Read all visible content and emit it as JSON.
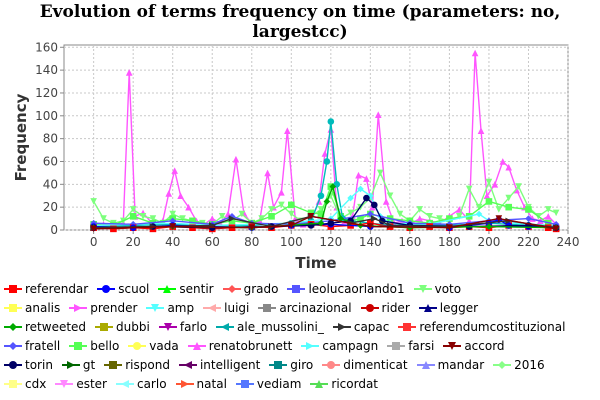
{
  "title": [
    "Evolution of terms frequency on time (parameters: no,",
    "largestcc)"
  ],
  "chart_data": {
    "type": "line",
    "title": "Evolution of terms frequency on time (parameters: no, largestcc)",
    "xlabel": "Time",
    "ylabel": "Frequency",
    "xlim": [
      -15,
      240
    ],
    "ylim": [
      0,
      162
    ],
    "xticks": [
      0,
      20,
      40,
      60,
      80,
      100,
      120,
      140,
      160,
      180,
      200,
      220,
      240
    ],
    "yticks": [
      0,
      20,
      40,
      60,
      80,
      100,
      120,
      140,
      160
    ],
    "grid": true,
    "legend_position": "bottom",
    "series": [
      {
        "name": "renatobrunett",
        "color": "#ff55ff",
        "marker": "triangle-up",
        "x": [
          0,
          5,
          10,
          15,
          18,
          21,
          25,
          30,
          35,
          38,
          41,
          44,
          48,
          52,
          56,
          60,
          64,
          68,
          72,
          76,
          80,
          84,
          88,
          91,
          95,
          98,
          102,
          106,
          110,
          114,
          117,
          120,
          123,
          127,
          131,
          134,
          138,
          141,
          144,
          148,
          152,
          156,
          160,
          165,
          170,
          175,
          180,
          185,
          190,
          193,
          196,
          199,
          203,
          207,
          210,
          214,
          218,
          222,
          226,
          230,
          234
        ],
        "y": [
          3,
          5,
          4,
          6,
          138,
          12,
          15,
          5,
          8,
          32,
          52,
          30,
          20,
          8,
          5,
          10,
          6,
          14,
          62,
          15,
          5,
          8,
          50,
          20,
          33,
          87,
          10,
          5,
          8,
          25,
          67,
          88,
          20,
          8,
          12,
          48,
          45,
          20,
          101,
          25,
          6,
          8,
          5,
          10,
          8,
          6,
          12,
          18,
          8,
          155,
          87,
          30,
          40,
          60,
          55,
          35,
          20,
          10,
          8,
          12,
          5
        ]
      },
      {
        "name": "voto",
        "color": "#7dff7d",
        "marker": "triangle-down",
        "x": [
          0,
          5,
          10,
          15,
          20,
          25,
          30,
          35,
          40,
          45,
          50,
          55,
          60,
          65,
          70,
          75,
          80,
          85,
          90,
          95,
          100,
          105,
          110,
          115,
          120,
          125,
          130,
          135,
          140,
          145,
          150,
          155,
          160,
          165,
          170,
          175,
          180,
          185,
          190,
          195,
          200,
          205,
          210,
          215,
          220,
          225,
          230,
          234
        ],
        "y": [
          25,
          10,
          6,
          8,
          18,
          12,
          10,
          6,
          14,
          10,
          8,
          6,
          5,
          12,
          8,
          14,
          6,
          10,
          18,
          22,
          14,
          8,
          12,
          18,
          30,
          10,
          15,
          20,
          28,
          50,
          30,
          14,
          8,
          18,
          12,
          10,
          8,
          12,
          36,
          20,
          42,
          18,
          28,
          38,
          20,
          12,
          18,
          15
        ]
      },
      {
        "name": "bello",
        "color": "#55ff55",
        "marker": "square",
        "x": [
          0,
          10,
          20,
          30,
          40,
          50,
          60,
          70,
          80,
          90,
          100,
          110,
          115,
          120,
          125,
          130,
          135,
          140,
          150,
          160,
          170,
          180,
          190,
          200,
          210,
          220,
          230
        ],
        "y": [
          5,
          4,
          12,
          6,
          10,
          8,
          5,
          8,
          6,
          12,
          22,
          15,
          14,
          38,
          12,
          8,
          10,
          14,
          10,
          8,
          6,
          10,
          12,
          25,
          20,
          18,
          6
        ]
      },
      {
        "name": "ale_mussolini_",
        "color": "#00bbbb",
        "marker": "circle",
        "x": [
          0,
          20,
          40,
          60,
          80,
          100,
          110,
          115,
          118,
          120,
          123,
          126,
          130,
          140,
          150,
          160,
          180,
          200,
          220,
          234
        ],
        "y": [
          3,
          4,
          5,
          3,
          4,
          6,
          8,
          30,
          60,
          95,
          40,
          10,
          8,
          6,
          4,
          5,
          4,
          6,
          4,
          3
        ]
      },
      {
        "name": "campagn",
        "color": "#55ffff",
        "marker": "diamond",
        "x": [
          0,
          20,
          40,
          60,
          80,
          100,
          120,
          130,
          135,
          140,
          145,
          150,
          170,
          195,
          200,
          220,
          234
        ],
        "y": [
          4,
          5,
          6,
          4,
          5,
          6,
          10,
          28,
          36,
          30,
          12,
          6,
          5,
          14,
          8,
          5,
          4
        ]
      },
      {
        "name": "fratell",
        "color": "#5555ff",
        "marker": "diamond",
        "x": [
          0,
          20,
          40,
          60,
          70,
          80,
          100,
          120,
          140,
          160,
          180,
          200,
          220,
          234
        ],
        "y": [
          6,
          5,
          8,
          5,
          12,
          6,
          5,
          8,
          14,
          6,
          5,
          8,
          10,
          5
        ]
      },
      {
        "name": "referendar",
        "color": "#ff0000",
        "marker": "square",
        "x": [
          0,
          10,
          20,
          30,
          40,
          50,
          60,
          70,
          80,
          90,
          100,
          110,
          120,
          130,
          140,
          150,
          160,
          170,
          180,
          190,
          200,
          210,
          220,
          230,
          234
        ],
        "y": [
          2,
          1,
          2,
          1,
          3,
          2,
          1,
          2,
          3,
          2,
          4,
          5,
          3,
          4,
          6,
          3,
          2,
          3,
          2,
          3,
          2,
          4,
          3,
          2,
          1
        ]
      },
      {
        "name": "scuol",
        "color": "#0000ff",
        "marker": "circle",
        "x": [
          0,
          20,
          40,
          60,
          80,
          100,
          120,
          140,
          160,
          180,
          200,
          205,
          210,
          220,
          234
        ],
        "y": [
          3,
          2,
          4,
          3,
          2,
          4,
          5,
          3,
          4,
          2,
          6,
          9,
          4,
          3,
          2
        ]
      },
      {
        "name": "torin",
        "color": "#000066",
        "marker": "circle",
        "x": [
          0,
          30,
          60,
          90,
          110,
          120,
          130,
          138,
          142,
          146,
          160,
          190,
          220,
          234
        ],
        "y": [
          2,
          3,
          2,
          3,
          4,
          6,
          8,
          28,
          22,
          8,
          4,
          3,
          4,
          2
        ]
      },
      {
        "name": "retweeted",
        "color": "#00aa00",
        "marker": "diamond",
        "x": [
          0,
          40,
          80,
          115,
          118,
          121,
          125,
          135,
          160,
          200,
          234
        ],
        "y": [
          2,
          3,
          2,
          6,
          25,
          38,
          10,
          4,
          2,
          3,
          2
        ]
      },
      {
        "name": "capac",
        "color": "#333333",
        "marker": "arrow",
        "x": [
          0,
          30,
          60,
          70,
          90,
          110,
          130,
          142,
          150,
          180,
          210,
          234
        ],
        "y": [
          2,
          3,
          4,
          10,
          3,
          12,
          6,
          10,
          4,
          3,
          8,
          2
        ]
      },
      {
        "name": "accord",
        "color": "#880000",
        "marker": "triangle-down",
        "x": [
          0,
          40,
          80,
          100,
          110,
          140,
          180,
          205,
          234
        ],
        "y": [
          1,
          3,
          2,
          4,
          12,
          3,
          2,
          10,
          1
        ]
      }
    ],
    "legend": [
      {
        "name": "referendar",
        "color": "#ff0000",
        "marker": "square"
      },
      {
        "name": "scuol",
        "color": "#0000ff",
        "marker": "circle"
      },
      {
        "name": "sentir",
        "color": "#00ff00",
        "marker": "triangle-up"
      },
      {
        "name": "grado",
        "color": "#ff5555",
        "marker": "diamond"
      },
      {
        "name": "leolucaorlando1",
        "color": "#5555ff",
        "marker": "square"
      },
      {
        "name": "voto",
        "color": "#7dff7d",
        "marker": "triangle-down"
      },
      {
        "name": "analis",
        "color": "#ffff55",
        "marker": "square"
      },
      {
        "name": "prender",
        "color": "#ff55ff",
        "marker": "arrow"
      },
      {
        "name": "amp",
        "color": "#55ffff",
        "marker": "triangle-down"
      },
      {
        "name": "luigi",
        "color": "#ffaaaa",
        "marker": "arrow-left"
      },
      {
        "name": "arcinazional",
        "color": "#888888",
        "marker": "square"
      },
      {
        "name": "rider",
        "color": "#cc0000",
        "marker": "circle"
      },
      {
        "name": "legger",
        "color": "#000088",
        "marker": "triangle-up"
      },
      {
        "name": "retweeted",
        "color": "#00aa00",
        "marker": "diamond"
      },
      {
        "name": "dubbi",
        "color": "#aaaa00",
        "marker": "square"
      },
      {
        "name": "farlo",
        "color": "#aa00aa",
        "marker": "triangle-down"
      },
      {
        "name": "ale_mussolini_",
        "color": "#00aaaa",
        "marker": "arrow-left"
      },
      {
        "name": "capac",
        "color": "#333333",
        "marker": "arrow"
      },
      {
        "name": "referendumcostituzional",
        "color": "#ff3333",
        "marker": "square"
      },
      {
        "name": "fratell",
        "color": "#5555ff",
        "marker": "diamond"
      },
      {
        "name": "bello",
        "color": "#55ff55",
        "marker": "square"
      },
      {
        "name": "vada",
        "color": "#ffff55",
        "marker": "circle"
      },
      {
        "name": "renatobrunett",
        "color": "#ff55ff",
        "marker": "triangle-up"
      },
      {
        "name": "campagn",
        "color": "#55ffff",
        "marker": "arrow"
      },
      {
        "name": "farsi",
        "color": "#aaaaaa",
        "marker": "square"
      },
      {
        "name": "accord",
        "color": "#880000",
        "marker": "triangle-down"
      },
      {
        "name": "torin",
        "color": "#000066",
        "marker": "circle"
      },
      {
        "name": "gt",
        "color": "#006600",
        "marker": "arrow"
      },
      {
        "name": "rispond",
        "color": "#666600",
        "marker": "square"
      },
      {
        "name": "intelligent",
        "color": "#660066",
        "marker": "arrow-left"
      },
      {
        "name": "giro",
        "color": "#008888",
        "marker": "square"
      },
      {
        "name": "dimenticat",
        "color": "#ff8888",
        "marker": "circle"
      },
      {
        "name": "mandar",
        "color": "#8888ff",
        "marker": "triangle-up"
      },
      {
        "name": "2016",
        "color": "#88ff88",
        "marker": "diamond"
      },
      {
        "name": "cdx",
        "color": "#ffff88",
        "marker": "square"
      },
      {
        "name": "ester",
        "color": "#ff88ff",
        "marker": "triangle-down"
      },
      {
        "name": "carlo",
        "color": "#88ffff",
        "marker": "arrow-left"
      },
      {
        "name": "natal",
        "color": "#ff5533",
        "marker": "arrow"
      },
      {
        "name": "vediam",
        "color": "#5577ff",
        "marker": "square"
      },
      {
        "name": "ricordat",
        "color": "#55dd55",
        "marker": "triangle-up"
      }
    ],
    "legend_rows": [
      6,
      7,
      6,
      7,
      8,
      6
    ]
  }
}
